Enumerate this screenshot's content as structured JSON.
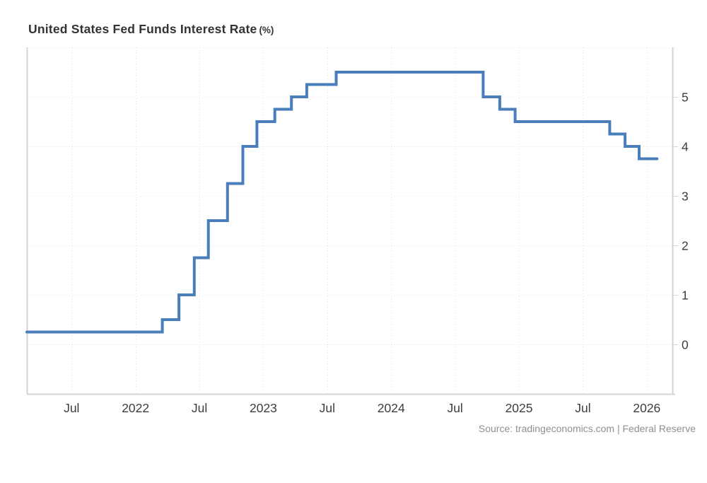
{
  "header": {
    "title": "United States Fed Funds Interest Rate",
    "unit": "(%)"
  },
  "footer": {
    "source": "Source: tradingeconomics.com | Federal Reserve"
  },
  "colors": {
    "line": "#4a7ebb",
    "grid": "#e2e2e2",
    "axis": "#d4d4d4",
    "tick_label": "#3d3d3d",
    "title": "#333333",
    "source_text": "#8f8f8f",
    "background": "#ffffff"
  },
  "chart_data": {
    "type": "line",
    "step": "after",
    "title": "United States Fed Funds Interest Rate (%)",
    "ylabel": "",
    "xlabel": "",
    "legend": "none",
    "grid": "dotted",
    "x_axis": {
      "min": 2021.15,
      "max": 2026.2,
      "ticks": [
        {
          "x": 2021.5,
          "label": "Jul"
        },
        {
          "x": 2022.0,
          "label": "2022"
        },
        {
          "x": 2022.5,
          "label": "Jul"
        },
        {
          "x": 2023.0,
          "label": "2023"
        },
        {
          "x": 2023.5,
          "label": "Jul"
        },
        {
          "x": 2024.0,
          "label": "2024"
        },
        {
          "x": 2024.5,
          "label": "Jul"
        },
        {
          "x": 2025.0,
          "label": "2025"
        },
        {
          "x": 2025.5,
          "label": "Jul"
        },
        {
          "x": 2026.0,
          "label": "2026"
        }
      ]
    },
    "y_axis": {
      "min": -1,
      "max": 6,
      "side": "right",
      "ticks": [
        0,
        1,
        2,
        3,
        4,
        5
      ]
    },
    "series": [
      {
        "name": "United States Fed Funds Interest Rate (%)",
        "color": "#4a7ebb",
        "points": [
          {
            "date": "2021-02",
            "x": 2021.15,
            "y": 0.25
          },
          {
            "date": "2022-03",
            "x": 2022.21,
            "y": 0.5
          },
          {
            "date": "2022-05",
            "x": 2022.34,
            "y": 1.0
          },
          {
            "date": "2022-06",
            "x": 2022.46,
            "y": 1.75
          },
          {
            "date": "2022-07",
            "x": 2022.57,
            "y": 2.5
          },
          {
            "date": "2022-09",
            "x": 2022.72,
            "y": 3.25
          },
          {
            "date": "2022-11",
            "x": 2022.84,
            "y": 4.0
          },
          {
            "date": "2022-12",
            "x": 2022.95,
            "y": 4.5
          },
          {
            "date": "2023-02",
            "x": 2023.09,
            "y": 4.75
          },
          {
            "date": "2023-03",
            "x": 2023.22,
            "y": 5.0
          },
          {
            "date": "2023-05",
            "x": 2023.34,
            "y": 5.25
          },
          {
            "date": "2023-07",
            "x": 2023.57,
            "y": 5.5
          },
          {
            "date": "2024-09",
            "x": 2024.72,
            "y": 5.0
          },
          {
            "date": "2024-11",
            "x": 2024.85,
            "y": 4.75
          },
          {
            "date": "2024-12",
            "x": 2024.97,
            "y": 4.5
          },
          {
            "date": "2025-09",
            "x": 2025.71,
            "y": 4.25
          },
          {
            "date": "2025-10",
            "x": 2025.83,
            "y": 4.0
          },
          {
            "date": "2025-12",
            "x": 2025.94,
            "y": 3.75
          },
          {
            "date": "2026-01",
            "x": 2026.08,
            "y": 3.75
          }
        ]
      }
    ]
  }
}
